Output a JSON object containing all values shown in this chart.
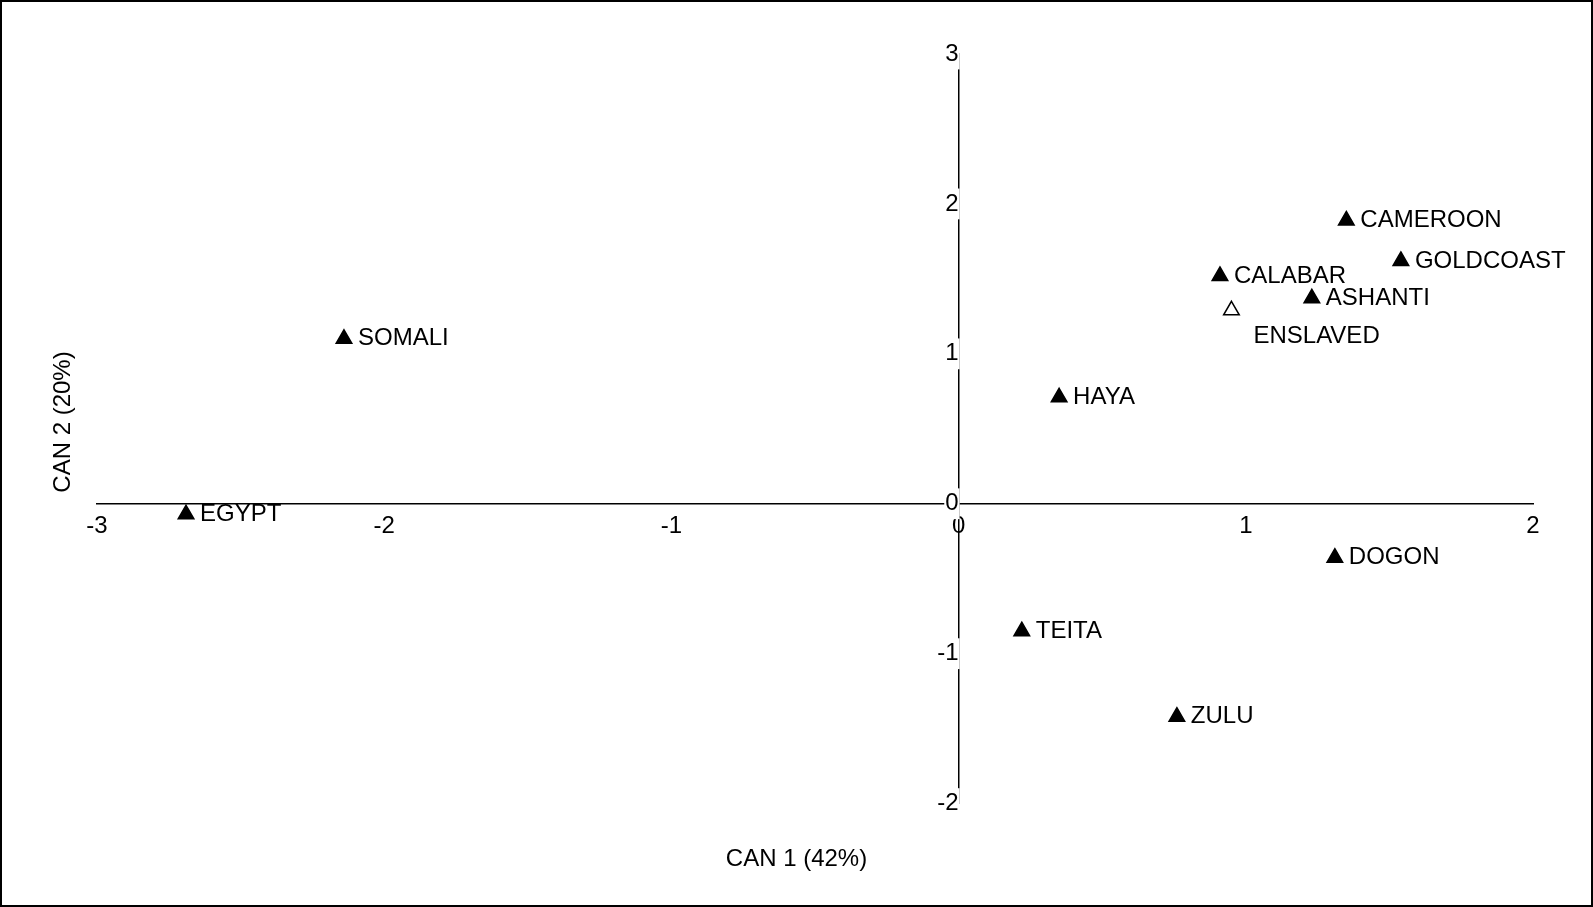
{
  "chart_data": {
    "type": "scatter",
    "xlabel": "CAN 1 (42%)",
    "ylabel": "CAN 2 (20%)",
    "xlim": [
      -3,
      2
    ],
    "ylim": [
      -2,
      3
    ],
    "xticks": [
      -3,
      -2,
      -1,
      0,
      1,
      2
    ],
    "yticks": [
      -2,
      -1,
      0,
      1,
      2,
      3
    ],
    "grid": false,
    "legend": false,
    "marker": "triangle",
    "series": [
      {
        "x": [
          -2.69,
          -2.14,
          0.35,
          0.91,
          1.35,
          1.54,
          1.23,
          0.95,
          1.31,
          0.22,
          0.76
        ],
        "values": [
          -0.07,
          1.1,
          0.71,
          1.52,
          1.89,
          1.62,
          1.37,
          1.29,
          -0.36,
          -0.85,
          -1.42
        ],
        "color": "#000000",
        "colors": [
          "#000000",
          "#000000",
          "#000000",
          "#000000",
          "#000000",
          "#000000",
          "#000000",
          "#ffffff",
          "#000000",
          "#000000",
          "#000000"
        ]
      }
    ],
    "annotations": [
      {
        "text": "EGYPT",
        "x": -2.69,
        "y": -0.07
      },
      {
        "text": "SOMALI",
        "x": -2.14,
        "y": 1.1
      },
      {
        "text": "HAYA",
        "x": 0.35,
        "y": 0.71
      },
      {
        "text": "CALABAR",
        "x": 0.91,
        "y": 1.52
      },
      {
        "text": "CAMEROON",
        "x": 1.35,
        "y": 1.89
      },
      {
        "text": "GOLDCOAST",
        "x": 1.54,
        "y": 1.62
      },
      {
        "text": "ASHANTI",
        "x": 1.23,
        "y": 1.37
      },
      {
        "text": "ENSLAVED",
        "x": 0.95,
        "y": 1.29
      },
      {
        "text": "DOGON",
        "x": 1.31,
        "y": -0.36
      },
      {
        "text": "TEITA",
        "x": 0.22,
        "y": -0.85
      },
      {
        "text": "ZULU",
        "x": 0.76,
        "y": -1.42
      }
    ]
  }
}
